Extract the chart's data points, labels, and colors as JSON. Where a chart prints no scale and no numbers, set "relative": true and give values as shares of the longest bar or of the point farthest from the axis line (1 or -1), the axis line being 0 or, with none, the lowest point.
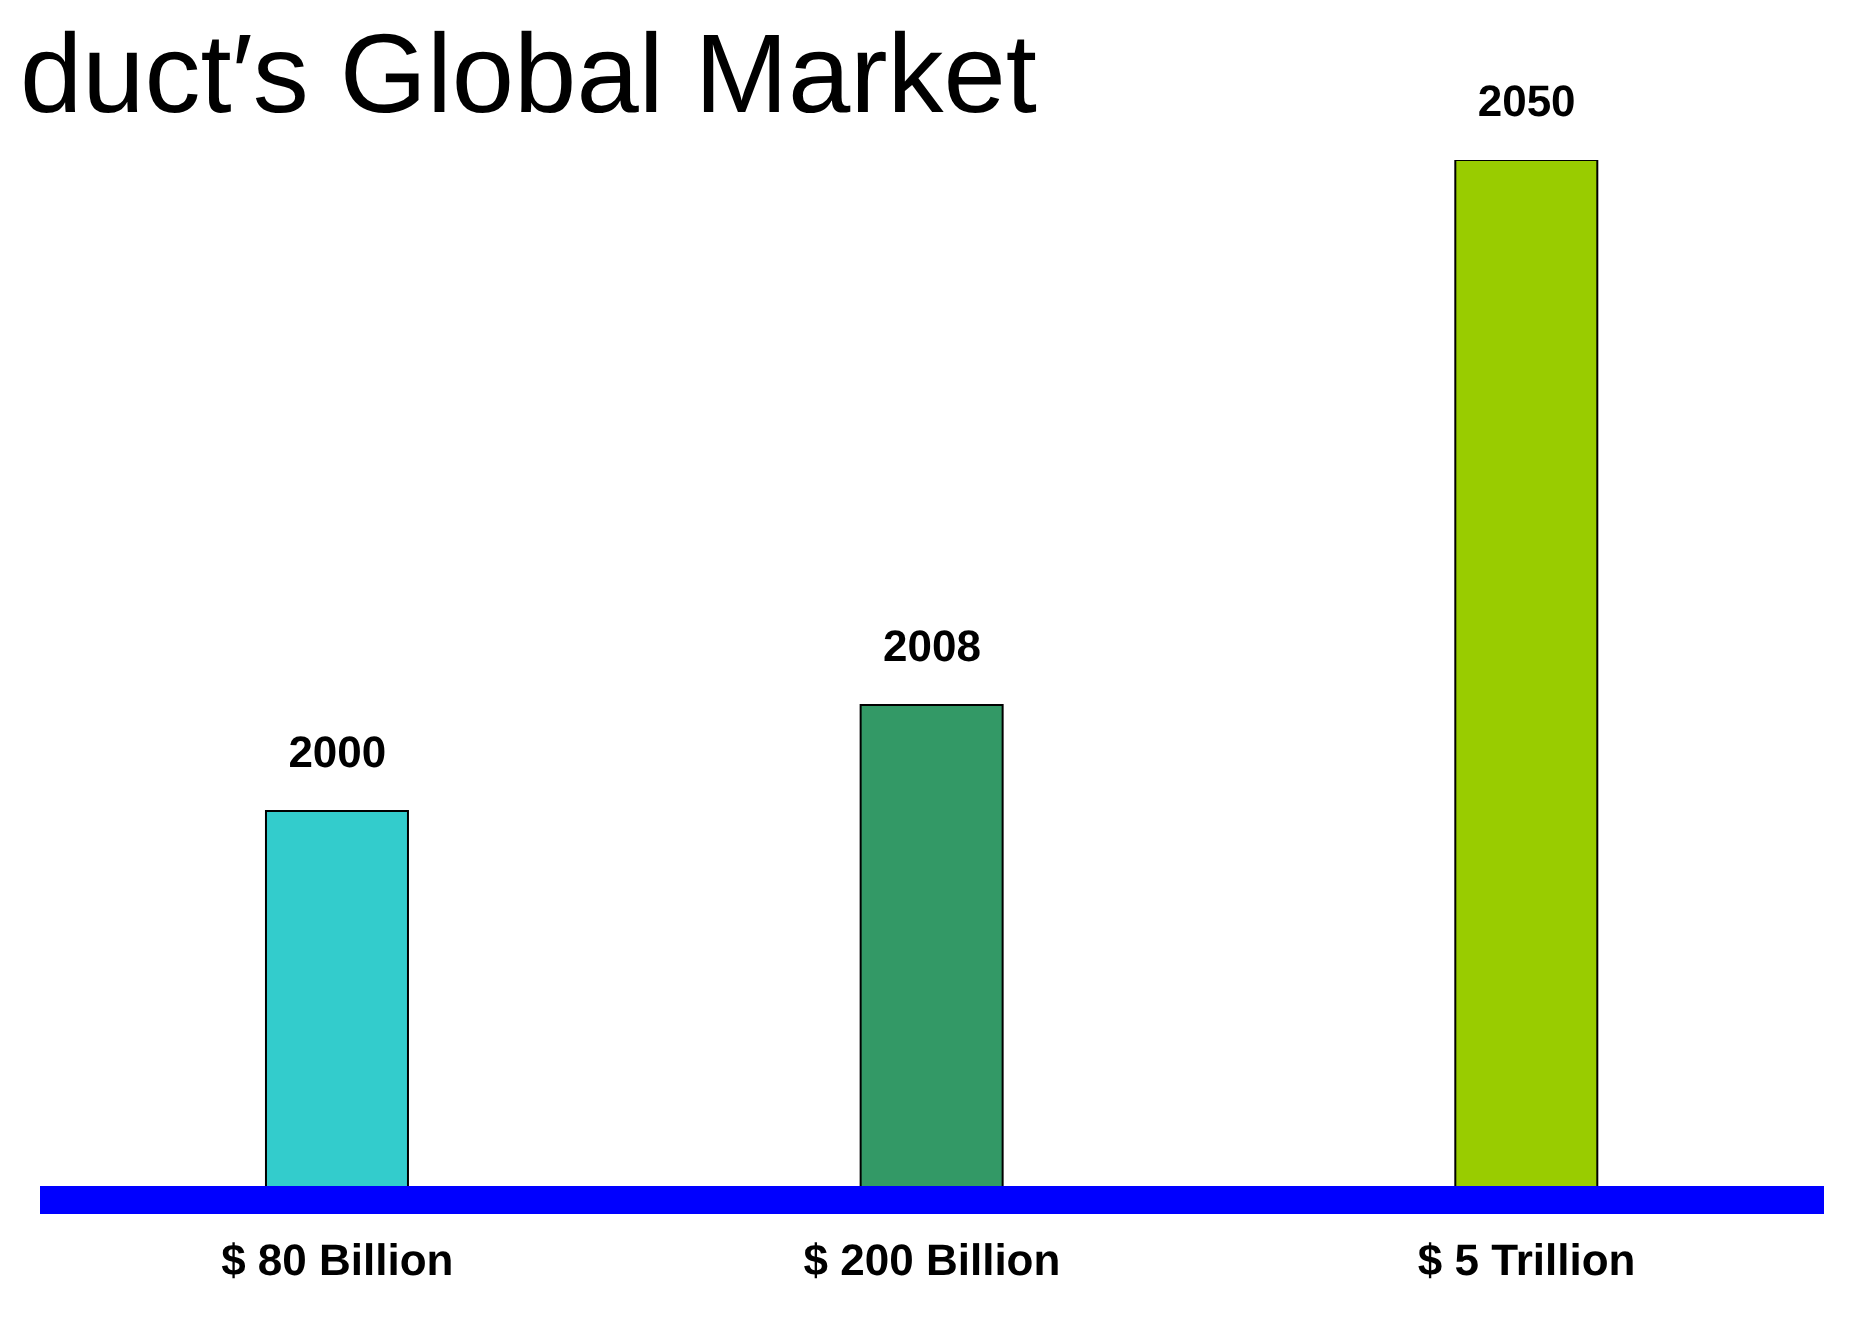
{
  "chart_data": {
    "type": "bar",
    "title": "duct′s Global Market",
    "categories": [
      "$ 80 Billion",
      "$ 200 Billion",
      "$ 5 Trillion"
    ],
    "values": [
      0.374,
      0.476,
      1
    ],
    "colors": [
      "#33cccc",
      "#339966",
      "#99cc00"
    ],
    "annotations": [
      {
        "text": "2000",
        "x": "$ 80 Billion",
        "y": 0.374
      },
      {
        "text": "2008",
        "x": "$ 200 Billion",
        "y": 0.476
      },
      {
        "text": "2050",
        "x": "$ 5 Trillion",
        "y": 1
      }
    ],
    "relative": true,
    "grid": false,
    "legend": false
  }
}
